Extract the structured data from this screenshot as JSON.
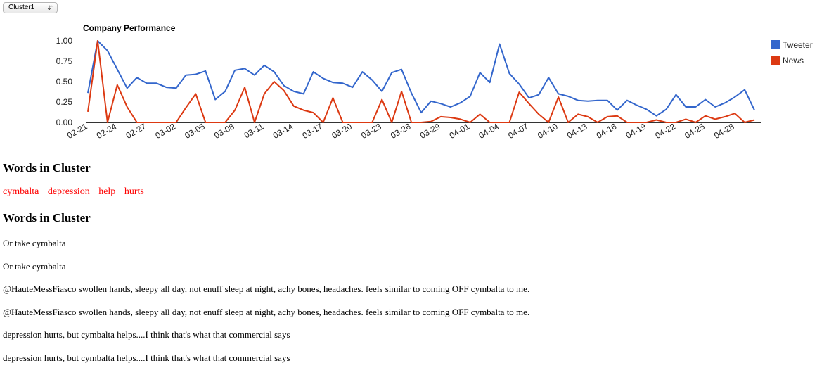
{
  "selector": {
    "value": "Cluster1"
  },
  "chart_data": {
    "type": "line",
    "title": "Company Performance",
    "ylim": [
      0,
      1
    ],
    "yticks": [
      "0.00",
      "0.25",
      "0.50",
      "0.75",
      "1.00"
    ],
    "xticks": [
      "02-21",
      "02-24",
      "02-27",
      "03-02",
      "03-05",
      "03-08",
      "03-11",
      "03-14",
      "03-17",
      "03-20",
      "03-23",
      "03-26",
      "03-29",
      "04-01",
      "04-04",
      "04-07",
      "04-10",
      "04-13",
      "04-16",
      "04-19",
      "04-22",
      "04-25",
      "04-28"
    ],
    "x": [
      "02-21",
      "02-22",
      "02-23",
      "02-24",
      "02-25",
      "02-26",
      "02-27",
      "02-28",
      "03-01",
      "03-02",
      "03-03",
      "03-04",
      "03-05",
      "03-06",
      "03-07",
      "03-08",
      "03-09",
      "03-10",
      "03-11",
      "03-12",
      "03-13",
      "03-14",
      "03-15",
      "03-16",
      "03-17",
      "03-18",
      "03-19",
      "03-20",
      "03-21",
      "03-22",
      "03-23",
      "03-24",
      "03-25",
      "03-26",
      "03-27",
      "03-28",
      "03-29",
      "03-30",
      "03-31",
      "04-01",
      "04-02",
      "04-03",
      "04-04",
      "04-05",
      "04-06",
      "04-07",
      "04-08",
      "04-09",
      "04-10",
      "04-11",
      "04-12",
      "04-13",
      "04-14",
      "04-15",
      "04-16",
      "04-17",
      "04-18",
      "04-19",
      "04-20",
      "04-21",
      "04-22",
      "04-23",
      "04-24",
      "04-25",
      "04-26",
      "04-27",
      "04-28",
      "04-29",
      "04-30"
    ],
    "legend_position": "right",
    "grid": false,
    "series": [
      {
        "name": "Tweeter",
        "color": "#3366cc",
        "values": [
          0.36,
          1.0,
          0.88,
          0.65,
          0.42,
          0.55,
          0.48,
          0.48,
          0.43,
          0.42,
          0.58,
          0.59,
          0.63,
          0.28,
          0.38,
          0.64,
          0.66,
          0.58,
          0.7,
          0.62,
          0.45,
          0.38,
          0.35,
          0.62,
          0.54,
          0.49,
          0.48,
          0.43,
          0.62,
          0.52,
          0.38,
          0.61,
          0.65,
          0.36,
          0.12,
          0.26,
          0.23,
          0.19,
          0.24,
          0.32,
          0.61,
          0.49,
          0.96,
          0.6,
          0.47,
          0.3,
          0.34,
          0.55,
          0.35,
          0.32,
          0.27,
          0.26,
          0.27,
          0.27,
          0.15,
          0.27,
          0.21,
          0.16,
          0.08,
          0.16,
          0.34,
          0.19,
          0.19,
          0.28,
          0.19,
          0.24,
          0.31,
          0.4,
          0.15
        ]
      },
      {
        "name": "News",
        "color": "#dc3912",
        "values": [
          0.13,
          1.0,
          0.0,
          0.46,
          0.19,
          0.0,
          0.0,
          0.0,
          0.0,
          0.0,
          0.18,
          0.35,
          0.0,
          0.0,
          0.0,
          0.15,
          0.43,
          0.0,
          0.35,
          0.5,
          0.39,
          0.2,
          0.15,
          0.12,
          0.0,
          0.3,
          0.0,
          0.0,
          0.0,
          0.0,
          0.28,
          0.0,
          0.38,
          0.0,
          0.0,
          0.01,
          0.07,
          0.06,
          0.04,
          0.0,
          0.1,
          0.0,
          0.0,
          0.0,
          0.37,
          0.23,
          0.1,
          0.0,
          0.31,
          0.0,
          0.1,
          0.07,
          0.0,
          0.07,
          0.08,
          0.0,
          0.0,
          0.0,
          0.03,
          0.0,
          0.0,
          0.04,
          0.0,
          0.08,
          0.04,
          0.07,
          0.11,
          0.0,
          0.03
        ]
      }
    ]
  },
  "section1": {
    "title": "Words in Cluster"
  },
  "words": [
    "cymbalta",
    "depression",
    "help",
    "hurts"
  ],
  "section2": {
    "title": "Words in Cluster"
  },
  "tweets": [
    "Or take cymbalta",
    "Or take cymbalta",
    "@HauteMessFiasco swollen hands, sleepy all day, not enuff sleep at night, achy bones, headaches. feels similar to coming OFF cymbalta to me.",
    "@HauteMessFiasco swollen hands, sleepy all day, not enuff sleep at night, achy bones, headaches. feels similar to coming OFF cymbalta to me.",
    "depression hurts, but cymbalta helps....I think that's what that commercial says",
    "depression hurts, but cymbalta helps....I think that's what that commercial says"
  ]
}
